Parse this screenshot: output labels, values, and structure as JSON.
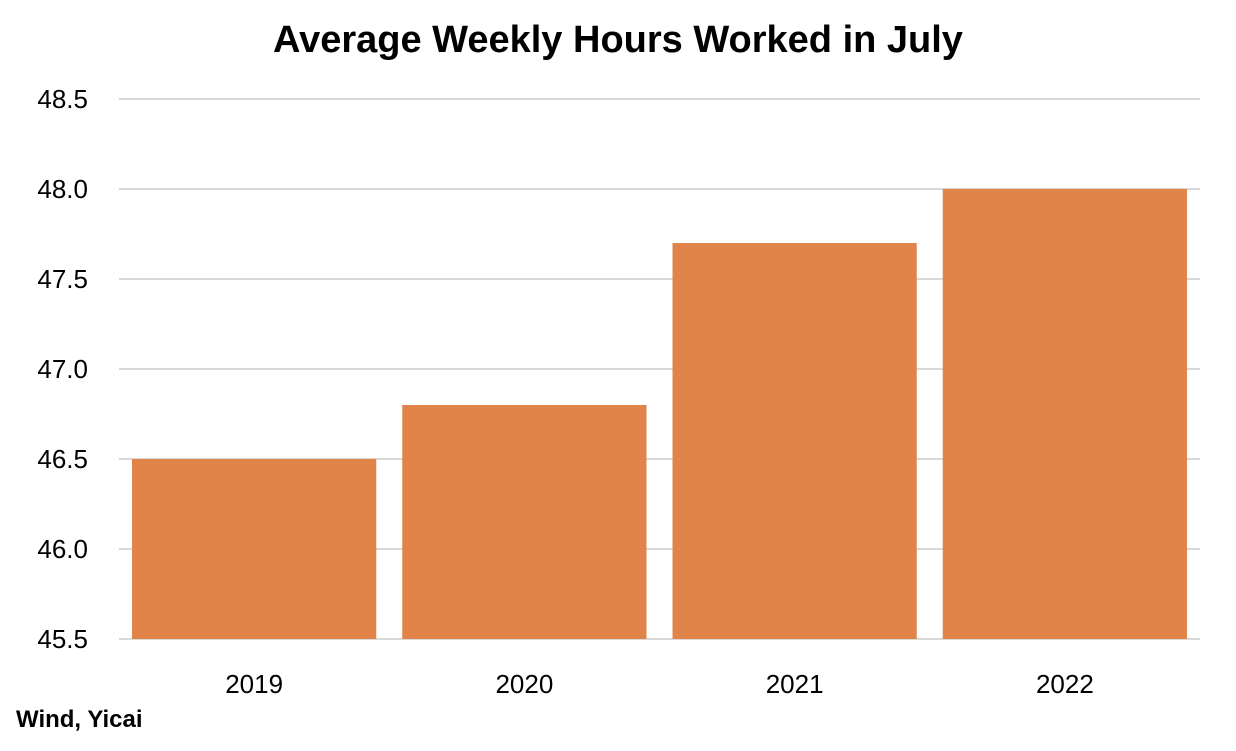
{
  "chart_data": {
    "type": "bar",
    "title": "Average Weekly Hours Worked in July",
    "categories": [
      "2019",
      "2020",
      "2021",
      "2022"
    ],
    "values": [
      46.5,
      46.8,
      47.7,
      48.0
    ],
    "ylim": [
      45.5,
      48.5
    ],
    "yticks": [
      "45.5",
      "46.0",
      "46.5",
      "47.0",
      "47.5",
      "48.0",
      "48.5"
    ],
    "xlabel": "",
    "ylabel": "",
    "grid": true,
    "legend": "none",
    "bar_color": "#E0844A",
    "grid_color": "#D9D9D9",
    "source": "Wind, Yicai"
  }
}
